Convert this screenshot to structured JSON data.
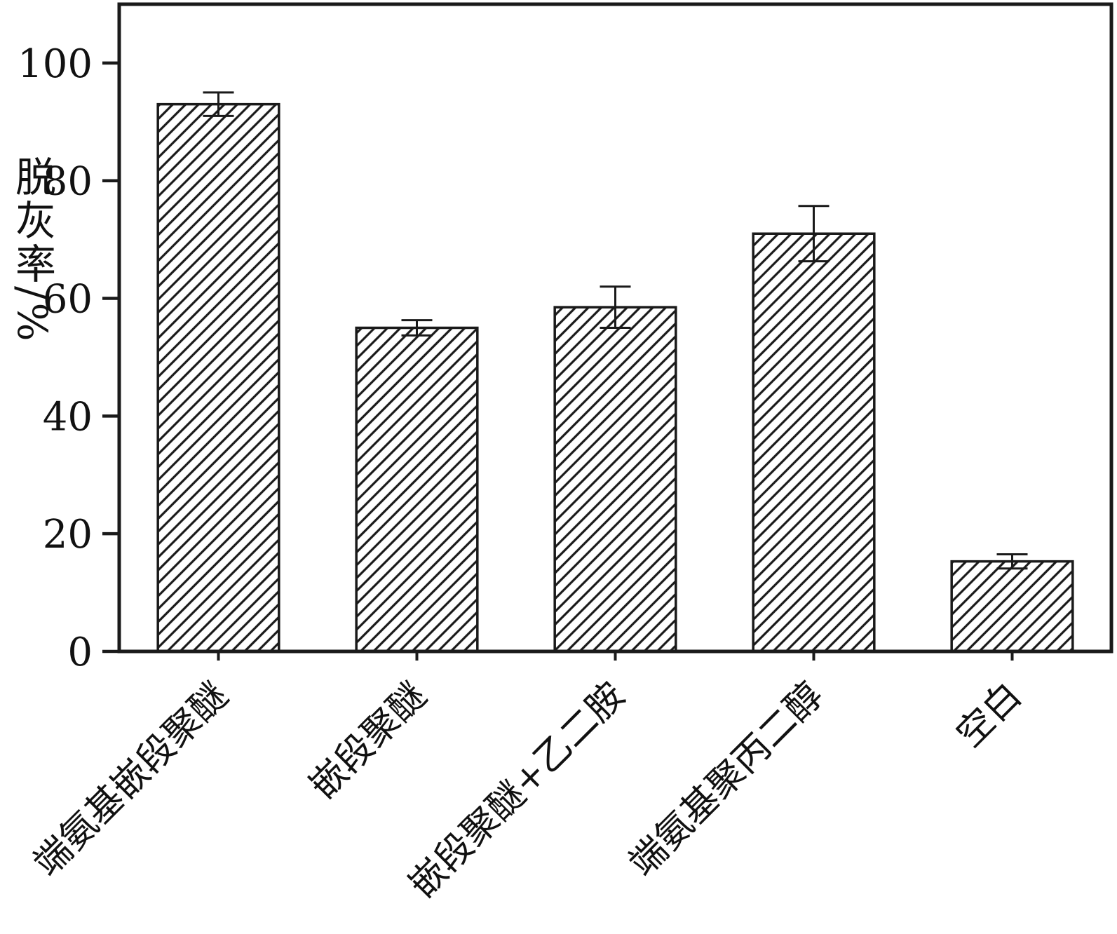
{
  "chart_data": {
    "type": "bar",
    "title": "",
    "ylabel": "脱灰率/%",
    "xlabel": "",
    "categories": [
      "端氨基嵌段聚醚",
      "嵌段聚醚",
      "嵌段聚醚+乙二胺",
      "端氨基聚丙二醇",
      "空白"
    ],
    "values": [
      93,
      55,
      58.5,
      71,
      15.3
    ],
    "errors": [
      2,
      1.3,
      3.5,
      4.7,
      1.2
    ],
    "ylim": [
      0,
      110
    ],
    "yticks": [
      0,
      20,
      40,
      60,
      80,
      100
    ],
    "legend": "none",
    "grid": "off",
    "bar_style": "diagonal-hatch",
    "colors": {
      "line": "#1a1a1a",
      "background": "#ffffff"
    }
  }
}
